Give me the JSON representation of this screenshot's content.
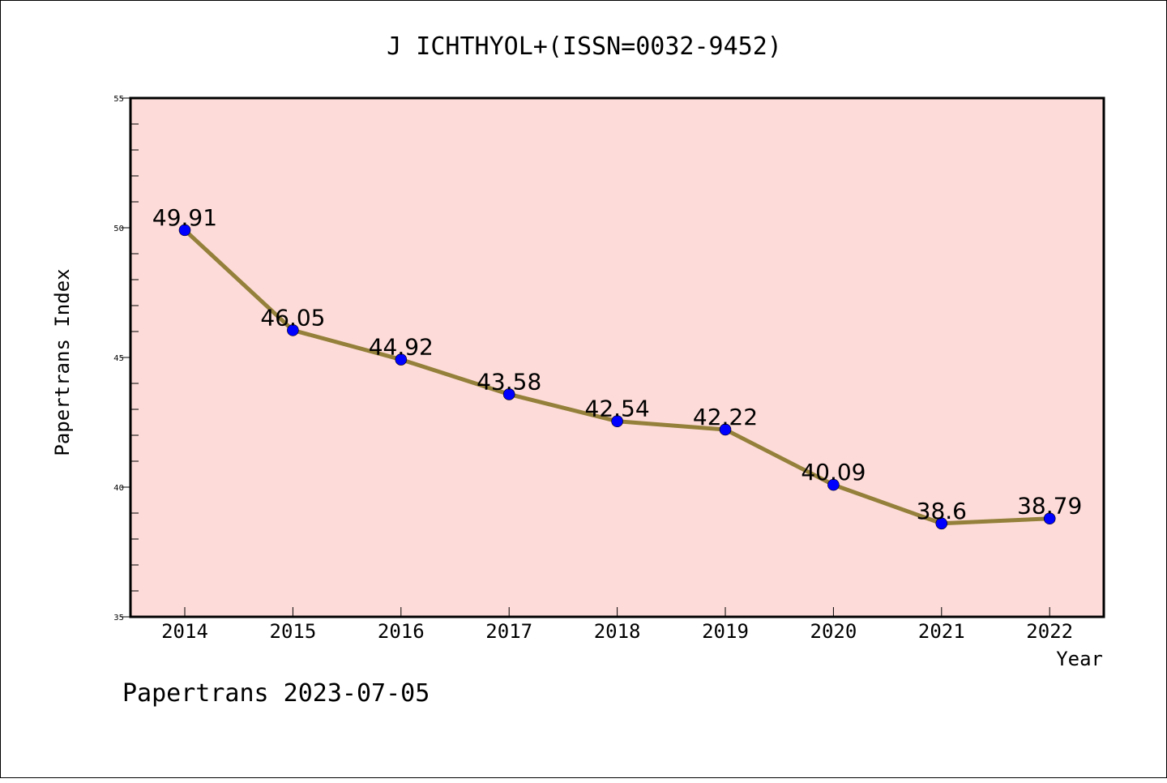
{
  "chart_data": {
    "type": "line",
    "title": "J ICHTHYOL+(ISSN=0032-9452)",
    "xlabel": "Year",
    "ylabel": "Papertrans Index",
    "categories": [
      "2014",
      "2015",
      "2016",
      "2017",
      "2018",
      "2019",
      "2020",
      "2021",
      "2022"
    ],
    "values": [
      49.91,
      46.05,
      44.92,
      43.58,
      42.54,
      42.22,
      40.09,
      38.6,
      38.79
    ],
    "data_labels": [
      "49.91",
      "46.05",
      "44.92",
      "43.58",
      "42.54",
      "42.22",
      "40.09",
      "38.6",
      "38.79"
    ],
    "ylim": [
      35,
      55
    ],
    "yticks": [
      35,
      40,
      45,
      50,
      55
    ],
    "grid": false,
    "legend": "none",
    "colors": {
      "plot_background": "#fddbd8",
      "line": "#94803a",
      "marker": "#0000ff"
    }
  },
  "footer": "Papertrans 2023-07-05"
}
